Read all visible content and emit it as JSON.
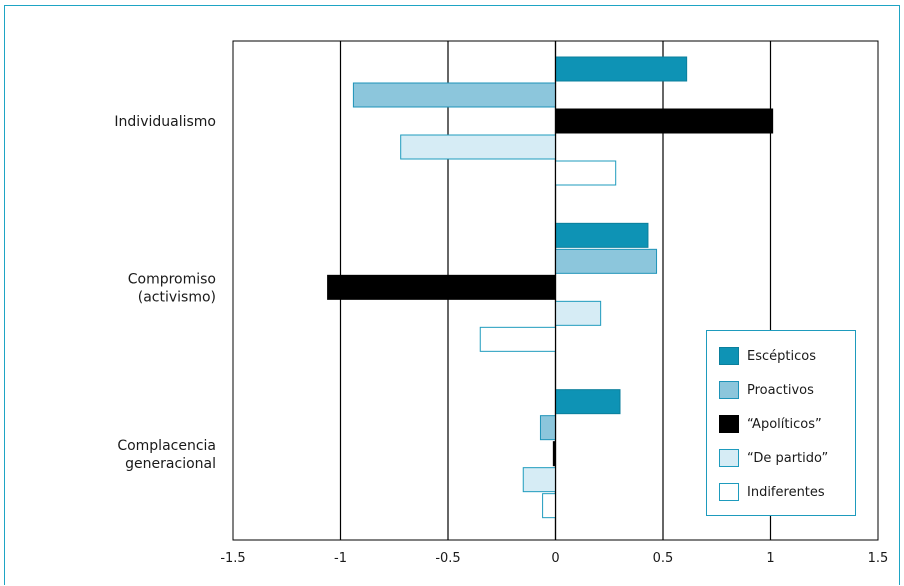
{
  "chart_data": {
    "type": "bar",
    "orientation": "horizontal",
    "categories": [
      "Individualismo",
      "Compromiso (activismo)",
      "Complacencia generacional"
    ],
    "category_labels": [
      [
        "Individualismo"
      ],
      [
        "Compromiso",
        "(activismo)"
      ],
      [
        "Complacencia",
        "generacional"
      ]
    ],
    "series": [
      {
        "name": "Escépticos",
        "values": [
          0.61,
          0.43,
          0.3
        ],
        "color": "#0e93b5",
        "stroke": "#0b7f9c"
      },
      {
        "name": "Proactivos",
        "values": [
          -0.94,
          0.47,
          -0.07
        ],
        "color": "#8cc6dc",
        "stroke": "#1e93b8"
      },
      {
        "name": "“Apolíticos”",
        "values": [
          1.01,
          -1.06,
          -0.01
        ],
        "color": "#000000",
        "stroke": "#000000"
      },
      {
        "name": "“De partido”",
        "values": [
          -0.72,
          0.21,
          -0.15
        ],
        "color": "#d6ecf5",
        "stroke": "#1e9bbd"
      },
      {
        "name": "Indiferentes",
        "values": [
          0.28,
          -0.35,
          -0.06
        ],
        "color": "#ffffff",
        "stroke": "#1e9bbd"
      }
    ],
    "xlim": [
      -1.5,
      1.5
    ],
    "xticks": [
      "-1.5",
      "-1",
      "-0.5",
      "0",
      "0.5",
      "1",
      "1.5"
    ],
    "title": "",
    "xlabel": "",
    "ylabel": "",
    "grid": "vertical lines at each tick",
    "legend_position": "bottom-right"
  }
}
